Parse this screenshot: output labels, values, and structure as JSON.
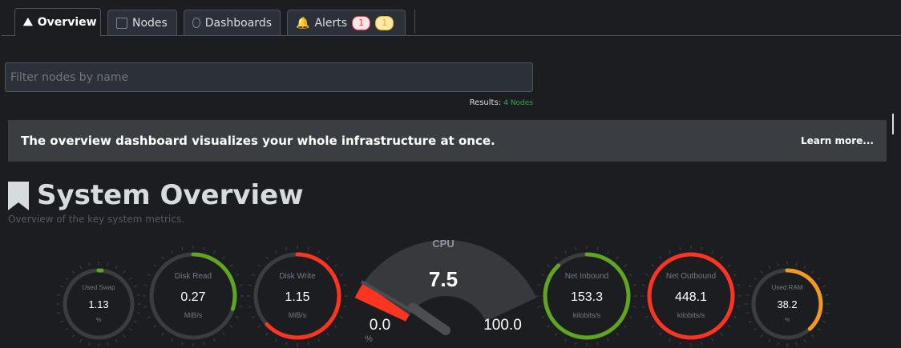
{
  "tabs": [
    {
      "label": "Overview",
      "icon": "overview-chart-icon",
      "active": true
    },
    {
      "label": "Nodes",
      "icon": "server-icon"
    },
    {
      "label": "Dashboards",
      "icon": "gauge-icon"
    },
    {
      "label": "Alerts",
      "icon": "bell-icon",
      "badges": [
        "1",
        "1"
      ]
    }
  ],
  "badge_colors": {
    "critical": "#ff3b3b",
    "warning": "#f7a823"
  },
  "search": {
    "placeholder": "Filter nodes by name"
  },
  "results": {
    "label": "Results:",
    "value": "4 Nodes"
  },
  "banner": {
    "text": "The overview dashboard visualizes your whole infrastructure at once.",
    "link": "Learn more..."
  },
  "section": {
    "title": "System Overview",
    "subtitle": "Overview of the key system metrics."
  },
  "gauges": [
    {
      "label": "Used Swap",
      "value": "1.13",
      "unit": "%",
      "fraction": 0.01,
      "color": "#5fa61e"
    },
    {
      "label": "Disk Read",
      "value": "0.27",
      "unit": "MiB/s",
      "fraction": 0.3,
      "color": "#5fa61e"
    },
    {
      "label": "Disk Write",
      "value": "1.15",
      "unit": "MiB/s",
      "fraction": 0.63,
      "color": "#ff3420"
    },
    {
      "label": "Net Inbound",
      "value": "153.3",
      "unit": "kilobits/s",
      "fraction": 0.88,
      "color": "#5fa61e"
    },
    {
      "label": "Net Outbound",
      "value": "448.1",
      "unit": "kilobits/s",
      "fraction": 1.0,
      "color": "#ff3420"
    },
    {
      "label": "Used RAM",
      "value": "38.2",
      "unit": "%",
      "fraction": 0.382,
      "color": "#f29a1f"
    }
  ],
  "cpu": {
    "label": "CPU",
    "value": "7.5",
    "min": "0.0",
    "max": "100.0",
    "unit": "%",
    "fraction": 0.075,
    "color": "#ff3420"
  }
}
